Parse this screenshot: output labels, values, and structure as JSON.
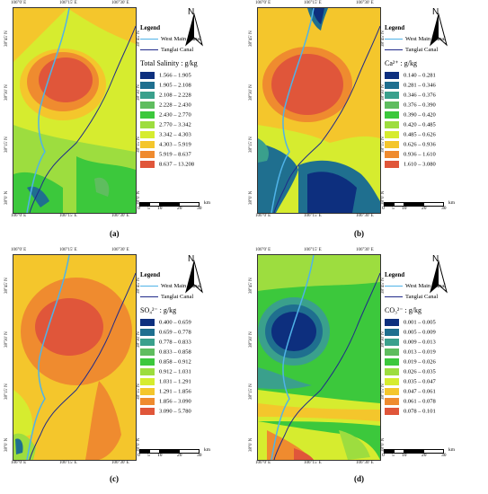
{
  "panels": [
    {
      "caption": "(a)",
      "legend_title": "Legend",
      "north_label": "N",
      "canals": [
        {
          "name": "West Main Canal",
          "color": "#4fb3e8"
        },
        {
          "name": "Tanglai Canal",
          "color": "#1f2a8a"
        }
      ],
      "variable_label": "Total Salinity : g/kg",
      "classes": [
        {
          "range": "1.566 – 1.905",
          "color": "#0d2f7e"
        },
        {
          "range": "1.905 – 2.108",
          "color": "#1f6f8f"
        },
        {
          "range": "2.108 – 2.228",
          "color": "#3aa08c"
        },
        {
          "range": "2.228 – 2.430",
          "color": "#5fbd5f"
        },
        {
          "range": "2.430 – 2.770",
          "color": "#3cc83c"
        },
        {
          "range": "2.770 – 3.342",
          "color": "#9ddd3f"
        },
        {
          "range": "3.342 – 4.303",
          "color": "#d6ec2f"
        },
        {
          "range": "4.303 – 5.919",
          "color": "#f4c62c"
        },
        {
          "range": "5.919 – 8.637",
          "color": "#ef8b2f"
        },
        {
          "range": "8.637 – 13.208",
          "color": "#e0563a"
        }
      ],
      "scale": {
        "ticks": [
          "0",
          "5",
          "10",
          "20",
          "30"
        ],
        "unit": "km"
      },
      "top_coords": [
        "106°0' E",
        "106°15' E",
        "106°30' E"
      ],
      "bottom_coords": [
        "106°0' E",
        "106°15' E",
        "106°30' E"
      ],
      "left_coords": [
        "38°45' N",
        "38°30' N",
        "38°15' N",
        "38°0' N"
      ],
      "right_coords": [
        "38°45' N",
        "38°30' N",
        "38°15' N",
        "38°0' N"
      ]
    },
    {
      "caption": "(b)",
      "legend_title": "Legend",
      "north_label": "N",
      "canals": [
        {
          "name": "West Main Canal",
          "color": "#4fb3e8"
        },
        {
          "name": "Tanglai Canal",
          "color": "#1f2a8a"
        }
      ],
      "variable_label": "Ca²⁺ : g/kg",
      "classes": [
        {
          "range": "0.140 – 0.281",
          "color": "#0d2f7e"
        },
        {
          "range": "0.281 – 0.346",
          "color": "#1f6f8f"
        },
        {
          "range": "0.346 – 0.376",
          "color": "#3aa08c"
        },
        {
          "range": "0.376 – 0.390",
          "color": "#5fbd5f"
        },
        {
          "range": "0.390 – 0.420",
          "color": "#3cc83c"
        },
        {
          "range": "0.420 – 0.485",
          "color": "#9ddd3f"
        },
        {
          "range": "0.485 – 0.626",
          "color": "#d6ec2f"
        },
        {
          "range": "0.626 – 0.936",
          "color": "#f4c62c"
        },
        {
          "range": "0.936 – 1.610",
          "color": "#ef8b2f"
        },
        {
          "range": "1.610 – 3.080",
          "color": "#e0563a"
        }
      ],
      "scale": {
        "ticks": [
          "0",
          "5",
          "10",
          "20",
          "30"
        ],
        "unit": "km"
      },
      "top_coords": [
        "106°0' E",
        "106°15' E",
        "106°30' E"
      ],
      "bottom_coords": [
        "106°0' E",
        "106°15' E",
        "106°30' E"
      ],
      "left_coords": [
        "38°45' N",
        "38°30' N",
        "38°15' N",
        "38°0' N"
      ],
      "right_coords": [
        "38°45' N",
        "38°30' N",
        "38°15' N",
        "38°0' N"
      ]
    },
    {
      "caption": "(c)",
      "legend_title": "Legend",
      "north_label": "N",
      "canals": [
        {
          "name": "West Main Canal",
          "color": "#4fb3e8"
        },
        {
          "name": "Tanglai Canal",
          "color": "#1f2a8a"
        }
      ],
      "variable_label": "SO₄²⁻ : g/kg",
      "classes": [
        {
          "range": "0.400 – 0.659",
          "color": "#0d2f7e"
        },
        {
          "range": "0.659 – 0.778",
          "color": "#1f6f8f"
        },
        {
          "range": "0.778 – 0.833",
          "color": "#3aa08c"
        },
        {
          "range": "0.833 – 0.858",
          "color": "#5fbd5f"
        },
        {
          "range": "0.858 – 0.912",
          "color": "#3cc83c"
        },
        {
          "range": "0.912 – 1.031",
          "color": "#9ddd3f"
        },
        {
          "range": "1.031 – 1.291",
          "color": "#d6ec2f"
        },
        {
          "range": "1.291 – 1.856",
          "color": "#f4c62c"
        },
        {
          "range": "1.856 – 3.090",
          "color": "#ef8b2f"
        },
        {
          "range": "3.090 – 5.780",
          "color": "#e0563a"
        }
      ],
      "scale": {
        "ticks": [
          "0",
          "5",
          "10",
          "20",
          "30"
        ],
        "unit": "km"
      },
      "top_coords": [
        "106°0' E",
        "106°15' E",
        "106°30' E"
      ],
      "bottom_coords": [
        "106°0' E",
        "106°15' E",
        "106°30' E"
      ],
      "left_coords": [
        "38°45' N",
        "38°30' N",
        "38°15' N",
        "38°0' N"
      ],
      "right_coords": [
        "38°45' N",
        "38°30' N",
        "38°15' N",
        "38°0' N"
      ]
    },
    {
      "caption": "(d)",
      "legend_title": "Legend",
      "north_label": "N",
      "canals": [
        {
          "name": "West Main Canal",
          "color": "#4fb3e8"
        },
        {
          "name": "Tanglai Canal",
          "color": "#1f2a8a"
        }
      ],
      "variable_label": "CO₃²⁻ : g/kg",
      "classes": [
        {
          "range": "0.001 – 0.005",
          "color": "#0d2f7e"
        },
        {
          "range": "0.005 – 0.009",
          "color": "#1f6f8f"
        },
        {
          "range": "0.009 – 0.013",
          "color": "#3aa08c"
        },
        {
          "range": "0.013 – 0.019",
          "color": "#5fbd5f"
        },
        {
          "range": "0.019 – 0.026",
          "color": "#3cc83c"
        },
        {
          "range": "0.026 – 0.035",
          "color": "#9ddd3f"
        },
        {
          "range": "0.035 – 0.047",
          "color": "#d6ec2f"
        },
        {
          "range": "0.047 – 0.061",
          "color": "#f4c62c"
        },
        {
          "range": "0.061 – 0.078",
          "color": "#ef8b2f"
        },
        {
          "range": "0.078 – 0.101",
          "color": "#e0563a"
        }
      ],
      "scale": {
        "ticks": [
          "0",
          "5",
          "10",
          "20",
          "30"
        ],
        "unit": "km"
      },
      "top_coords": [
        "106°0' E",
        "106°15' E",
        "106°30' E"
      ],
      "bottom_coords": [
        "106°0' E",
        "106°15' E",
        "106°30' E"
      ],
      "left_coords": [
        "38°45' N",
        "38°30' N",
        "38°15' N",
        "38°0' N"
      ],
      "right_coords": [
        "38°45' N",
        "38°30' N",
        "38°15' N",
        "38°0' N"
      ]
    }
  ]
}
